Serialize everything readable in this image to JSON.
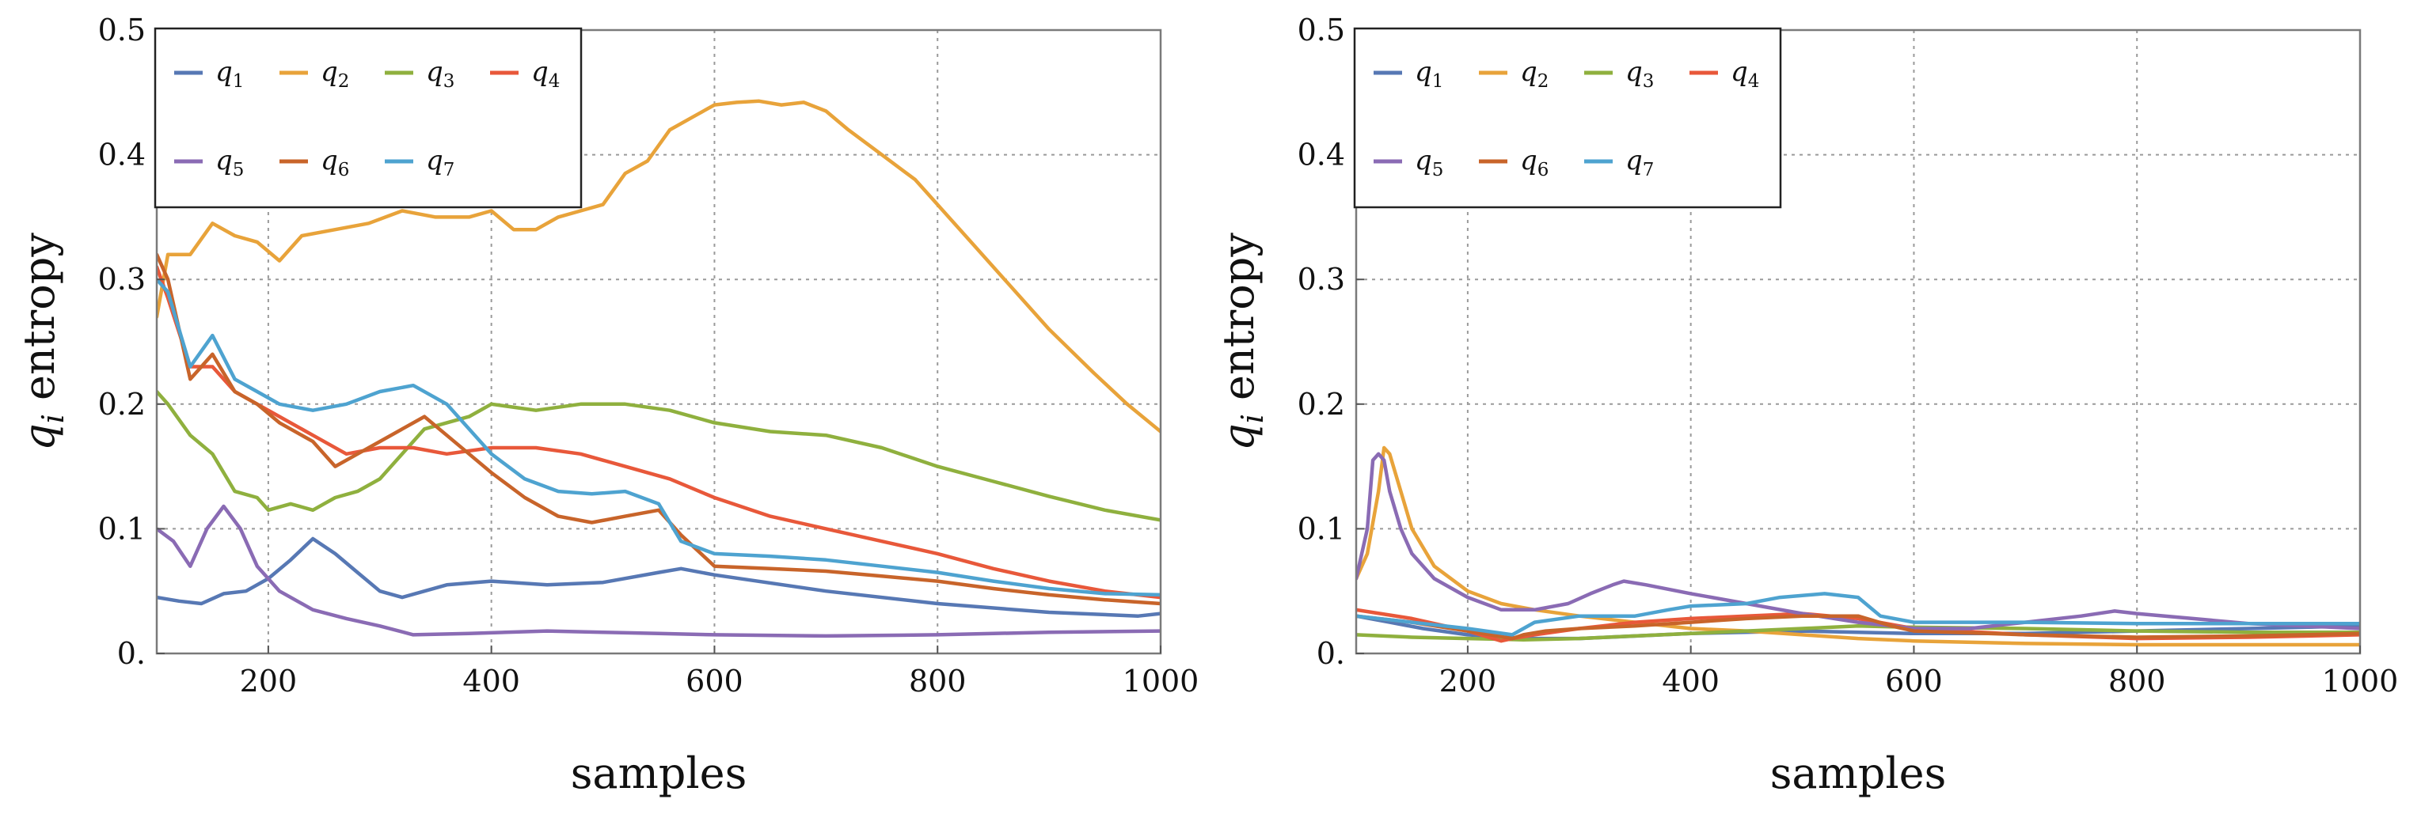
{
  "colors": {
    "q1": "#5778b4",
    "q2": "#e8a33a",
    "q3": "#8fb03e",
    "q4": "#e8583a",
    "q5": "#8a6bb4",
    "q6": "#c8642a",
    "q7": "#4ea3d0"
  },
  "chart_data": [
    {
      "type": "line",
      "xlabel": "samples",
      "ylabel": "q_i entropy",
      "ylabel_main": "q",
      "ylabel_sub": "i",
      "ylabel_rest": " entropy",
      "xlim": [
        100,
        1000
      ],
      "ylim": [
        0,
        0.5
      ],
      "xticks": [
        200,
        400,
        600,
        800,
        1000
      ],
      "xtick_labels": [
        "200",
        "400",
        "600",
        "800",
        "1000"
      ],
      "yticks": [
        0,
        0.1,
        0.2,
        0.3,
        0.4,
        0.5
      ],
      "ytick_labels": [
        "0.",
        "0.1",
        "0.2",
        "0.3",
        "0.4",
        "0.5"
      ],
      "grid": true,
      "legend_position": "top-left",
      "series": [
        {
          "name": "q1",
          "label_main": "q",
          "label_sub": "1",
          "color_key": "q1",
          "x": [
            100,
            120,
            140,
            160,
            180,
            200,
            220,
            240,
            260,
            280,
            300,
            320,
            360,
            400,
            450,
            500,
            550,
            570,
            600,
            700,
            800,
            900,
            980,
            1000
          ],
          "y": [
            0.045,
            0.042,
            0.04,
            0.048,
            0.05,
            0.06,
            0.075,
            0.092,
            0.08,
            0.065,
            0.05,
            0.045,
            0.055,
            0.058,
            0.055,
            0.057,
            0.065,
            0.068,
            0.063,
            0.05,
            0.04,
            0.033,
            0.03,
            0.032
          ]
        },
        {
          "name": "q2",
          "label_main": "q",
          "label_sub": "2",
          "color_key": "q2",
          "x": [
            100,
            110,
            130,
            150,
            170,
            190,
            210,
            230,
            260,
            290,
            320,
            350,
            380,
            400,
            420,
            440,
            460,
            480,
            500,
            520,
            540,
            560,
            580,
            600,
            620,
            640,
            660,
            680,
            700,
            720,
            750,
            780,
            800,
            830,
            860,
            900,
            940,
            970,
            1000
          ],
          "y": [
            0.27,
            0.32,
            0.32,
            0.345,
            0.335,
            0.33,
            0.315,
            0.335,
            0.34,
            0.345,
            0.355,
            0.35,
            0.35,
            0.355,
            0.34,
            0.34,
            0.35,
            0.355,
            0.36,
            0.385,
            0.395,
            0.42,
            0.43,
            0.44,
            0.442,
            0.443,
            0.44,
            0.442,
            0.435,
            0.42,
            0.4,
            0.38,
            0.36,
            0.33,
            0.3,
            0.26,
            0.225,
            0.2,
            0.178
          ]
        },
        {
          "name": "q3",
          "label_main": "q",
          "label_sub": "3",
          "color_key": "q3",
          "x": [
            100,
            110,
            130,
            150,
            170,
            190,
            200,
            220,
            240,
            260,
            280,
            300,
            320,
            340,
            360,
            380,
            400,
            440,
            480,
            520,
            560,
            600,
            650,
            700,
            750,
            800,
            850,
            900,
            950,
            1000
          ],
          "y": [
            0.21,
            0.2,
            0.175,
            0.16,
            0.13,
            0.125,
            0.115,
            0.12,
            0.115,
            0.125,
            0.13,
            0.14,
            0.16,
            0.18,
            0.185,
            0.19,
            0.2,
            0.195,
            0.2,
            0.2,
            0.195,
            0.185,
            0.178,
            0.175,
            0.165,
            0.15,
            0.138,
            0.126,
            0.115,
            0.107
          ]
        },
        {
          "name": "q4",
          "label_main": "q",
          "label_sub": "4",
          "color_key": "q4",
          "x": [
            100,
            110,
            130,
            150,
            170,
            190,
            210,
            240,
            270,
            300,
            330,
            360,
            400,
            440,
            480,
            520,
            560,
            600,
            650,
            700,
            750,
            800,
            850,
            900,
            950,
            1000
          ],
          "y": [
            0.31,
            0.285,
            0.23,
            0.23,
            0.21,
            0.2,
            0.19,
            0.175,
            0.16,
            0.165,
            0.165,
            0.16,
            0.165,
            0.165,
            0.16,
            0.15,
            0.14,
            0.125,
            0.11,
            0.1,
            0.09,
            0.08,
            0.068,
            0.058,
            0.05,
            0.045
          ]
        },
        {
          "name": "q5",
          "label_main": "q",
          "label_sub": "5",
          "color_key": "q5",
          "x": [
            100,
            115,
            130,
            145,
            160,
            175,
            190,
            210,
            240,
            270,
            300,
            330,
            380,
            450,
            500,
            550,
            600,
            700,
            800,
            900,
            1000
          ],
          "y": [
            0.1,
            0.09,
            0.07,
            0.1,
            0.118,
            0.1,
            0.07,
            0.05,
            0.035,
            0.028,
            0.022,
            0.015,
            0.016,
            0.018,
            0.017,
            0.016,
            0.015,
            0.014,
            0.015,
            0.017,
            0.018
          ]
        },
        {
          "name": "q6",
          "label_main": "q",
          "label_sub": "6",
          "color_key": "q6",
          "x": [
            100,
            110,
            130,
            150,
            170,
            190,
            210,
            240,
            260,
            280,
            300,
            320,
            340,
            360,
            380,
            400,
            430,
            460,
            490,
            520,
            550,
            570,
            600,
            650,
            700,
            750,
            800,
            850,
            900,
            950,
            1000
          ],
          "y": [
            0.32,
            0.3,
            0.22,
            0.24,
            0.21,
            0.2,
            0.185,
            0.17,
            0.15,
            0.16,
            0.17,
            0.18,
            0.19,
            0.175,
            0.16,
            0.145,
            0.125,
            0.11,
            0.105,
            0.11,
            0.115,
            0.095,
            0.07,
            0.068,
            0.066,
            0.062,
            0.058,
            0.052,
            0.047,
            0.043,
            0.04
          ]
        },
        {
          "name": "q7",
          "label_main": "q",
          "label_sub": "7",
          "color_key": "q7",
          "x": [
            100,
            110,
            130,
            150,
            170,
            190,
            210,
            240,
            270,
            300,
            330,
            360,
            380,
            400,
            430,
            460,
            490,
            520,
            550,
            570,
            600,
            650,
            700,
            750,
            800,
            850,
            900,
            950,
            1000
          ],
          "y": [
            0.3,
            0.29,
            0.23,
            0.255,
            0.22,
            0.21,
            0.2,
            0.195,
            0.2,
            0.21,
            0.215,
            0.2,
            0.18,
            0.16,
            0.14,
            0.13,
            0.128,
            0.13,
            0.12,
            0.09,
            0.08,
            0.078,
            0.075,
            0.07,
            0.065,
            0.058,
            0.052,
            0.048,
            0.047
          ]
        }
      ]
    },
    {
      "type": "line",
      "xlabel": "samples",
      "ylabel": "q_i entropy",
      "ylabel_main": "q",
      "ylabel_sub": "i",
      "ylabel_rest": " entropy",
      "xlim": [
        100,
        1000
      ],
      "ylim": [
        0,
        0.5
      ],
      "xticks": [
        200,
        400,
        600,
        800,
        1000
      ],
      "xtick_labels": [
        "200",
        "400",
        "600",
        "800",
        "1000"
      ],
      "yticks": [
        0,
        0.1,
        0.2,
        0.3,
        0.4,
        0.5
      ],
      "ytick_labels": [
        "0.",
        "0.1",
        "0.2",
        "0.3",
        "0.4",
        "0.5"
      ],
      "grid": true,
      "legend_position": "top-left",
      "series": [
        {
          "name": "q1",
          "label_main": "q",
          "label_sub": "1",
          "color_key": "q1",
          "x": [
            100,
            130,
            160,
            200,
            250,
            300,
            400,
            500,
            600,
            700,
            800,
            900,
            1000
          ],
          "y": [
            0.03,
            0.025,
            0.02,
            0.015,
            0.012,
            0.012,
            0.016,
            0.018,
            0.016,
            0.016,
            0.018,
            0.02,
            0.022
          ]
        },
        {
          "name": "q2",
          "label_main": "q",
          "label_sub": "2",
          "color_key": "q2",
          "x": [
            100,
            110,
            120,
            125,
            130,
            140,
            150,
            170,
            200,
            230,
            260,
            300,
            350,
            400,
            450,
            500,
            550,
            600,
            700,
            800,
            900,
            1000
          ],
          "y": [
            0.06,
            0.08,
            0.13,
            0.165,
            0.16,
            0.13,
            0.1,
            0.07,
            0.05,
            0.04,
            0.035,
            0.03,
            0.025,
            0.02,
            0.018,
            0.015,
            0.012,
            0.01,
            0.008,
            0.007,
            0.007,
            0.007
          ]
        },
        {
          "name": "q3",
          "label_main": "q",
          "label_sub": "3",
          "color_key": "q3",
          "x": [
            100,
            150,
            200,
            250,
            300,
            350,
            400,
            450,
            500,
            550,
            600,
            700,
            800,
            900,
            1000
          ],
          "y": [
            0.015,
            0.013,
            0.012,
            0.011,
            0.012,
            0.014,
            0.016,
            0.018,
            0.02,
            0.022,
            0.021,
            0.02,
            0.018,
            0.017,
            0.017
          ]
        },
        {
          "name": "q4",
          "label_main": "q",
          "label_sub": "4",
          "color_key": "q4",
          "x": [
            100,
            150,
            200,
            230,
            240,
            260,
            300,
            350,
            400,
            450,
            500,
            550,
            600,
            700,
            800,
            900,
            1000
          ],
          "y": [
            0.035,
            0.028,
            0.018,
            0.01,
            0.012,
            0.015,
            0.02,
            0.025,
            0.028,
            0.03,
            0.032,
            0.028,
            0.02,
            0.015,
            0.012,
            0.013,
            0.015
          ]
        },
        {
          "name": "q5",
          "label_main": "q",
          "label_sub": "5",
          "color_key": "q5",
          "x": [
            100,
            110,
            115,
            120,
            125,
            130,
            140,
            150,
            170,
            200,
            230,
            260,
            290,
            310,
            330,
            340,
            360,
            400,
            450,
            500,
            550,
            600,
            650,
            700,
            750,
            780,
            800,
            850,
            900,
            950,
            1000
          ],
          "y": [
            0.06,
            0.1,
            0.155,
            0.16,
            0.155,
            0.13,
            0.1,
            0.08,
            0.06,
            0.045,
            0.035,
            0.035,
            0.04,
            0.048,
            0.055,
            0.058,
            0.055,
            0.048,
            0.04,
            0.032,
            0.025,
            0.02,
            0.02,
            0.025,
            0.03,
            0.034,
            0.032,
            0.028,
            0.024,
            0.022,
            0.02
          ]
        },
        {
          "name": "q6",
          "label_main": "q",
          "label_sub": "6",
          "color_key": "q6",
          "x": [
            100,
            150,
            200,
            240,
            250,
            270,
            300,
            350,
            400,
            450,
            500,
            550,
            580,
            600,
            700,
            800,
            900,
            1000
          ],
          "y": [
            0.03,
            0.025,
            0.018,
            0.012,
            0.015,
            0.018,
            0.02,
            0.022,
            0.025,
            0.028,
            0.03,
            0.03,
            0.022,
            0.018,
            0.015,
            0.013,
            0.014,
            0.016
          ]
        },
        {
          "name": "q7",
          "label_main": "q",
          "label_sub": "7",
          "color_key": "q7",
          "x": [
            100,
            150,
            200,
            240,
            250,
            260,
            300,
            350,
            380,
            400,
            450,
            480,
            520,
            550,
            570,
            600,
            700,
            800,
            900,
            1000
          ],
          "y": [
            0.03,
            0.025,
            0.02,
            0.015,
            0.02,
            0.025,
            0.03,
            0.03,
            0.035,
            0.038,
            0.04,
            0.045,
            0.048,
            0.045,
            0.03,
            0.025,
            0.025,
            0.024,
            0.024,
            0.024
          ]
        }
      ]
    }
  ]
}
